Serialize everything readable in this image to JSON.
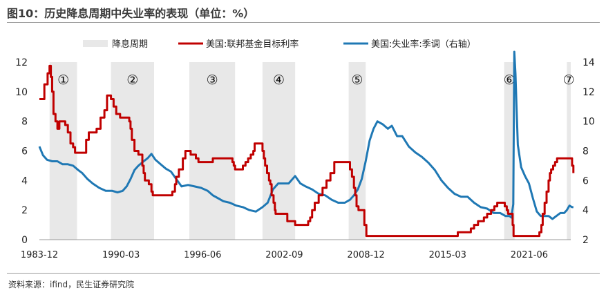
{
  "figure_title": "图10：历史降息周期中失业率的表现（单位：%）",
  "source": "资料来源：ifind，民生证券研究院",
  "chart_data": {
    "type": "line",
    "x_unit": "year",
    "x_range": [
      1983.92,
      2024.6
    ],
    "x_tick_labels": [
      {
        "x": 1983.92,
        "label": "1983-12"
      },
      {
        "x": 1990.17,
        "label": "1990-03"
      },
      {
        "x": 1996.42,
        "label": "1996-06"
      },
      {
        "x": 2002.67,
        "label": "2002-09"
      },
      {
        "x": 2008.92,
        "label": "2008-12"
      },
      {
        "x": 2015.17,
        "label": "2015-03"
      },
      {
        "x": 2021.42,
        "label": "2021-06"
      }
    ],
    "y_left": {
      "range": [
        0,
        12
      ],
      "ticks": [
        0,
        2,
        4,
        6,
        8,
        10,
        12
      ]
    },
    "y_right": {
      "range": [
        2,
        14
      ],
      "ticks": [
        2,
        4,
        6,
        8,
        10,
        12,
        14
      ]
    },
    "legend": {
      "placement": "top",
      "entries": [
        "降息周期",
        "美国:联邦基金目标利率",
        "美国:失业率:季调（右轴）"
      ]
    },
    "colors": {
      "band": "#e8e8e8",
      "fed": "#c00000",
      "unemployment": "#1f78b4"
    },
    "cut_cycles": [
      {
        "label": "①",
        "start": 1984.7,
        "end": 1986.8
      },
      {
        "label": "②",
        "start": 1989.4,
        "end": 1992.7
      },
      {
        "label": "③",
        "start": 1995.4,
        "end": 1998.9
      },
      {
        "label": "④",
        "start": 2001.0,
        "end": 2003.5
      },
      {
        "label": "⑤",
        "start": 2007.6,
        "end": 2008.9
      },
      {
        "label": "⑥",
        "start": 2019.5,
        "end": 2020.3
      },
      {
        "label": "⑦",
        "start": 2024.3,
        "end": 2024.6
      }
    ],
    "series": [
      {
        "name": "美国:联邦基金目标利率",
        "axis": "left",
        "step": true,
        "points": [
          [
            1983.92,
            9.5
          ],
          [
            1984.3,
            10.5
          ],
          [
            1984.55,
            11.25
          ],
          [
            1984.7,
            11.75
          ],
          [
            1984.8,
            11.0
          ],
          [
            1984.9,
            10.0
          ],
          [
            1985.0,
            8.5
          ],
          [
            1985.15,
            8.0
          ],
          [
            1985.3,
            7.5
          ],
          [
            1985.45,
            8.0
          ],
          [
            1985.9,
            7.75
          ],
          [
            1986.1,
            7.25
          ],
          [
            1986.3,
            6.5
          ],
          [
            1986.5,
            6.25
          ],
          [
            1986.65,
            5.88
          ],
          [
            1987.5,
            6.75
          ],
          [
            1987.7,
            7.25
          ],
          [
            1988.3,
            7.5
          ],
          [
            1988.6,
            8.25
          ],
          [
            1988.9,
            8.75
          ],
          [
            1989.1,
            9.75
          ],
          [
            1989.4,
            9.5
          ],
          [
            1989.6,
            9.0
          ],
          [
            1989.8,
            8.5
          ],
          [
            1990.1,
            8.25
          ],
          [
            1990.8,
            8.0
          ],
          [
            1990.9,
            7.5
          ],
          [
            1991.0,
            6.75
          ],
          [
            1991.2,
            6.0
          ],
          [
            1991.5,
            5.75
          ],
          [
            1991.8,
            5.0
          ],
          [
            1991.9,
            4.5
          ],
          [
            1992.0,
            4.0
          ],
          [
            1992.3,
            3.75
          ],
          [
            1992.5,
            3.25
          ],
          [
            1992.6,
            3.0
          ],
          [
            1994.1,
            3.25
          ],
          [
            1994.3,
            3.75
          ],
          [
            1994.4,
            4.25
          ],
          [
            1994.6,
            4.75
          ],
          [
            1994.9,
            5.5
          ],
          [
            1995.1,
            6.0
          ],
          [
            1995.5,
            5.75
          ],
          [
            1995.9,
            5.5
          ],
          [
            1996.1,
            5.25
          ],
          [
            1997.2,
            5.5
          ],
          [
            1998.7,
            5.25
          ],
          [
            1998.8,
            5.0
          ],
          [
            1998.9,
            4.75
          ],
          [
            1999.5,
            5.0
          ],
          [
            1999.7,
            5.25
          ],
          [
            1999.9,
            5.5
          ],
          [
            2000.1,
            5.75
          ],
          [
            2000.3,
            6.0
          ],
          [
            2000.4,
            6.5
          ],
          [
            2001.0,
            6.0
          ],
          [
            2001.1,
            5.5
          ],
          [
            2001.2,
            5.0
          ],
          [
            2001.35,
            4.5
          ],
          [
            2001.5,
            4.0
          ],
          [
            2001.6,
            3.75
          ],
          [
            2001.7,
            3.0
          ],
          [
            2001.85,
            2.5
          ],
          [
            2001.95,
            2.0
          ],
          [
            2002.0,
            1.75
          ],
          [
            2002.9,
            1.25
          ],
          [
            2003.5,
            1.0
          ],
          [
            2004.5,
            1.25
          ],
          [
            2004.65,
            1.5
          ],
          [
            2004.8,
            2.0
          ],
          [
            2005.0,
            2.5
          ],
          [
            2005.3,
            3.0
          ],
          [
            2005.6,
            3.5
          ],
          [
            2005.9,
            4.0
          ],
          [
            2006.2,
            4.5
          ],
          [
            2006.5,
            5.25
          ],
          [
            2007.7,
            4.75
          ],
          [
            2007.85,
            4.25
          ],
          [
            2008.0,
            3.5
          ],
          [
            2008.1,
            3.0
          ],
          [
            2008.2,
            2.25
          ],
          [
            2008.35,
            2.0
          ],
          [
            2008.8,
            1.0
          ],
          [
            2008.95,
            0.25
          ],
          [
            2015.95,
            0.5
          ],
          [
            2016.95,
            0.75
          ],
          [
            2017.2,
            1.0
          ],
          [
            2017.5,
            1.25
          ],
          [
            2017.95,
            1.5
          ],
          [
            2018.2,
            1.75
          ],
          [
            2018.5,
            2.0
          ],
          [
            2018.75,
            2.25
          ],
          [
            2018.97,
            2.5
          ],
          [
            2019.55,
            2.25
          ],
          [
            2019.7,
            2.0
          ],
          [
            2019.8,
            1.75
          ],
          [
            2020.15,
            1.0
          ],
          [
            2020.22,
            0.25
          ],
          [
            2022.2,
            0.5
          ],
          [
            2022.35,
            1.0
          ],
          [
            2022.45,
            1.75
          ],
          [
            2022.6,
            2.5
          ],
          [
            2022.75,
            3.25
          ],
          [
            2022.9,
            4.0
          ],
          [
            2023.0,
            4.5
          ],
          [
            2023.1,
            4.75
          ],
          [
            2023.25,
            5.0
          ],
          [
            2023.4,
            5.25
          ],
          [
            2023.55,
            5.5
          ],
          [
            2024.6,
            5.5
          ],
          [
            2024.7,
            5.0
          ],
          [
            2024.8,
            4.5
          ]
        ]
      },
      {
        "name": "美国:失业率:季调（右轴）",
        "axis": "right",
        "step": false,
        "points": [
          [
            1983.92,
            8.3
          ],
          [
            1984.2,
            7.7
          ],
          [
            1984.5,
            7.4
          ],
          [
            1984.9,
            7.3
          ],
          [
            1985.3,
            7.3
          ],
          [
            1985.7,
            7.1
          ],
          [
            1986.1,
            7.1
          ],
          [
            1986.5,
            7.0
          ],
          [
            1986.9,
            6.7
          ],
          [
            1987.2,
            6.5
          ],
          [
            1987.6,
            6.1
          ],
          [
            1988.0,
            5.8
          ],
          [
            1988.5,
            5.5
          ],
          [
            1989.0,
            5.3
          ],
          [
            1989.5,
            5.3
          ],
          [
            1989.9,
            5.2
          ],
          [
            1990.3,
            5.3
          ],
          [
            1990.6,
            5.6
          ],
          [
            1990.9,
            6.1
          ],
          [
            1991.2,
            6.7
          ],
          [
            1991.5,
            7.0
          ],
          [
            1991.9,
            7.3
          ],
          [
            1992.2,
            7.5
          ],
          [
            1992.5,
            7.8
          ],
          [
            1992.8,
            7.4
          ],
          [
            1993.2,
            7.1
          ],
          [
            1993.6,
            6.8
          ],
          [
            1994.0,
            6.6
          ],
          [
            1994.4,
            6.1
          ],
          [
            1994.8,
            5.6
          ],
          [
            1995.3,
            5.7
          ],
          [
            1995.8,
            5.6
          ],
          [
            1996.3,
            5.5
          ],
          [
            1996.8,
            5.3
          ],
          [
            1997.2,
            5.0
          ],
          [
            1997.6,
            4.8
          ],
          [
            1998.0,
            4.6
          ],
          [
            1998.5,
            4.5
          ],
          [
            1999.0,
            4.3
          ],
          [
            1999.5,
            4.2
          ],
          [
            2000.0,
            4.0
          ],
          [
            2000.5,
            3.9
          ],
          [
            2001.0,
            4.2
          ],
          [
            2001.4,
            4.5
          ],
          [
            2001.8,
            5.4
          ],
          [
            2002.2,
            5.8
          ],
          [
            2002.6,
            5.8
          ],
          [
            2003.0,
            5.8
          ],
          [
            2003.5,
            6.3
          ],
          [
            2003.9,
            5.8
          ],
          [
            2004.3,
            5.6
          ],
          [
            2004.8,
            5.4
          ],
          [
            2005.3,
            5.1
          ],
          [
            2005.8,
            5.0
          ],
          [
            2006.3,
            4.7
          ],
          [
            2006.8,
            4.5
          ],
          [
            2007.3,
            4.5
          ],
          [
            2007.7,
            4.7
          ],
          [
            2008.0,
            5.0
          ],
          [
            2008.3,
            5.4
          ],
          [
            2008.6,
            6.1
          ],
          [
            2008.9,
            7.3
          ],
          [
            2009.2,
            8.7
          ],
          [
            2009.5,
            9.5
          ],
          [
            2009.8,
            10.0
          ],
          [
            2010.2,
            9.8
          ],
          [
            2010.6,
            9.5
          ],
          [
            2010.9,
            9.7
          ],
          [
            2011.3,
            9.0
          ],
          [
            2011.7,
            9.0
          ],
          [
            2012.2,
            8.3
          ],
          [
            2012.7,
            7.9
          ],
          [
            2013.2,
            7.6
          ],
          [
            2013.7,
            7.2
          ],
          [
            2014.2,
            6.7
          ],
          [
            2014.7,
            6.0
          ],
          [
            2015.2,
            5.5
          ],
          [
            2015.7,
            5.1
          ],
          [
            2016.2,
            4.9
          ],
          [
            2016.7,
            4.9
          ],
          [
            2017.2,
            4.5
          ],
          [
            2017.7,
            4.2
          ],
          [
            2018.2,
            4.1
          ],
          [
            2018.7,
            3.8
          ],
          [
            2019.2,
            3.8
          ],
          [
            2019.6,
            3.6
          ],
          [
            2019.9,
            3.6
          ],
          [
            2020.05,
            3.5
          ],
          [
            2020.2,
            4.4
          ],
          [
            2020.28,
            14.7
          ],
          [
            2020.37,
            13.2
          ],
          [
            2020.45,
            11.0
          ],
          [
            2020.55,
            8.4
          ],
          [
            2020.8,
            6.9
          ],
          [
            2021.1,
            6.3
          ],
          [
            2021.4,
            5.8
          ],
          [
            2021.7,
            4.8
          ],
          [
            2022.0,
            3.9
          ],
          [
            2022.3,
            3.6
          ],
          [
            2022.6,
            3.6
          ],
          [
            2022.9,
            3.6
          ],
          [
            2023.2,
            3.4
          ],
          [
            2023.5,
            3.6
          ],
          [
            2023.8,
            3.8
          ],
          [
            2024.1,
            3.8
          ],
          [
            2024.3,
            4.0
          ],
          [
            2024.5,
            4.3
          ],
          [
            2024.7,
            4.2
          ],
          [
            2024.8,
            4.2
          ]
        ]
      }
    ]
  }
}
